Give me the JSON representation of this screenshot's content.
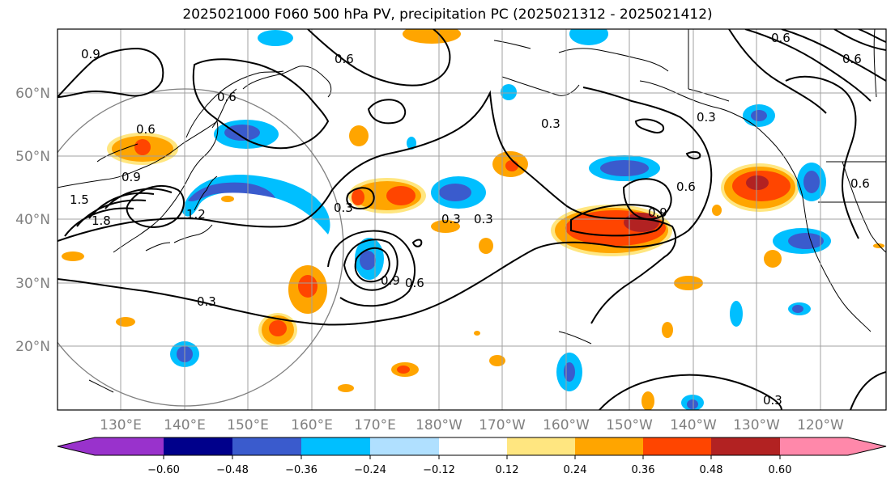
{
  "title": "2025021000 F060 500 hPa PV, precipitation PC (2025021312 - 2025021412)",
  "lat_labels": [
    "60°N",
    "50°N",
    "40°N",
    "30°N",
    "20°N"
  ],
  "lon_labels": [
    "130°E",
    "140°E",
    "150°E",
    "160°E",
    "170°E",
    "180°W",
    "170°W",
    "160°W",
    "150°W",
    "140°W",
    "130°W",
    "120°W"
  ],
  "colorbar": {
    "ticks": [
      "−0.60",
      "−0.48",
      "−0.36",
      "−0.24",
      "−0.12",
      "0.12",
      "0.24",
      "0.36",
      "0.48",
      "0.60"
    ],
    "colors": [
      "#9932cc",
      "#00008b",
      "#3a5bcd",
      "#00bfff",
      "#b0e0ff",
      "#ffffff",
      "#ffe680",
      "#ffa500",
      "#ff4500",
      "#b22222",
      "#ff88aa"
    ]
  },
  "contour_labels": [
    "0.9",
    "0.6",
    "0.6",
    "0.9",
    "1.5",
    "1.8",
    "1.2",
    "0.3",
    "0.3",
    "0.3",
    "0.6",
    "0.9",
    "0.6",
    "0.3",
    "0.3",
    "0.3",
    "0.6",
    "0.9",
    "0.6",
    "0.6",
    "0.6",
    "0.3"
  ],
  "colors": {
    "grid": "#a0a0a0",
    "coast": "#000000",
    "contour": "#000000",
    "circle": "#808080"
  }
}
